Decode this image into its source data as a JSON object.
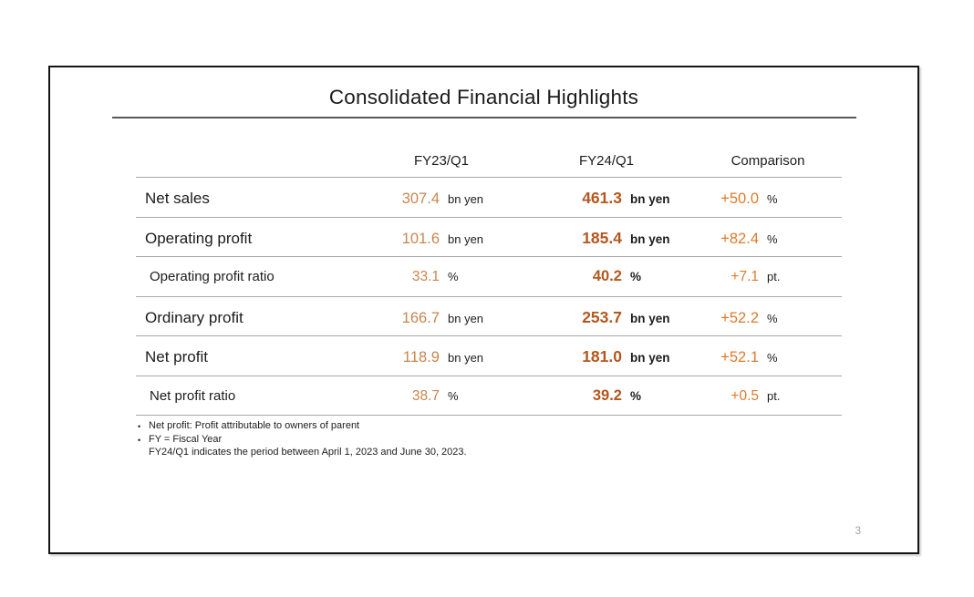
{
  "slide": {
    "title": "Consolidated Financial Highlights",
    "page_number": "3"
  },
  "table": {
    "headers": {
      "fy23": "FY23/Q1",
      "fy24": "FY24/Q1",
      "comparison": "Comparison"
    },
    "rows": [
      {
        "label": "Net sales",
        "fy23": "307.4",
        "fy23_unit": "bn yen",
        "fy24": "461.3",
        "fy24_unit": "bn yen",
        "comp": "+50.0",
        "comp_unit": "%",
        "ratio": false
      },
      {
        "label": "Operating profit",
        "fy23": "101.6",
        "fy23_unit": "bn yen",
        "fy24": "185.4",
        "fy24_unit": "bn yen",
        "comp": "+82.4",
        "comp_unit": "%",
        "ratio": false
      },
      {
        "label": "Operating profit ratio",
        "fy23": "33.1",
        "fy23_unit": "%",
        "fy24": "40.2",
        "fy24_unit": "%",
        "comp": "+7.1",
        "comp_unit": "pt.",
        "ratio": true
      },
      {
        "label": "Ordinary profit",
        "fy23": "166.7",
        "fy23_unit": "bn yen",
        "fy24": "253.7",
        "fy24_unit": "bn yen",
        "comp": "+52.2",
        "comp_unit": "%",
        "ratio": false
      },
      {
        "label": "Net profit",
        "fy23": "118.9",
        "fy23_unit": "bn yen",
        "fy24": "181.0",
        "fy24_unit": "bn yen",
        "comp": "+52.1",
        "comp_unit": "%",
        "ratio": false
      },
      {
        "label": "Net profit ratio",
        "fy23": "38.7",
        "fy23_unit": "%",
        "fy24": "39.2",
        "fy24_unit": "%",
        "comp": "+0.5",
        "comp_unit": "pt.",
        "ratio": true
      }
    ]
  },
  "notes": [
    {
      "bullet": true,
      "text": "Net profit: Profit attributable to owners of parent"
    },
    {
      "bullet": true,
      "text": "FY = Fiscal Year"
    },
    {
      "bullet": false,
      "text": "FY24/Q1 indicates the period between April 1, 2023 and June 30, 2023."
    }
  ],
  "colors": {
    "fy23_value": "#c8854f",
    "fy24_value": "#b4571e",
    "comparison_value": "#de7b2c",
    "title_rule": "#595959",
    "row_line": "#a8a8a8",
    "page_number": "#a0a0a0"
  }
}
